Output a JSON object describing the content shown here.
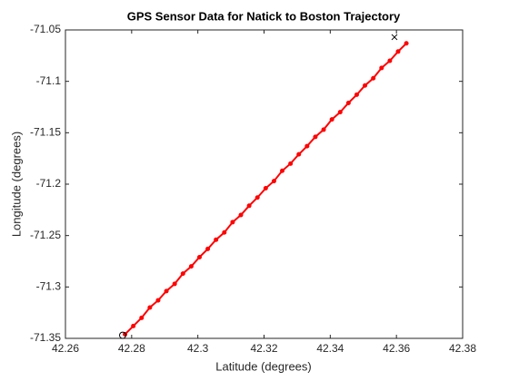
{
  "chart_data": {
    "type": "line",
    "title": "GPS Sensor Data for Natick to Boston Trajectory",
    "x_label": "Latitude (degrees)",
    "y_label": "Longitude (degrees)",
    "xlim": [
      42.26,
      42.38
    ],
    "xticks": [
      42.26,
      42.28,
      42.3,
      42.32,
      42.34,
      42.36,
      42.38
    ],
    "ylim": [
      -71.35,
      -71.05
    ],
    "yticks": [
      -71.35,
      -71.3,
      -71.25,
      -71.2,
      -71.15,
      -71.1,
      -71.05
    ],
    "grid": false,
    "series": [
      {
        "color": "#ff0000",
        "x": [
          42.278,
          42.2805,
          42.283,
          42.2855,
          42.288,
          42.2905,
          42.293,
          42.2955,
          42.298,
          42.3005,
          42.303,
          42.3055,
          42.308,
          42.3105,
          42.313,
          42.3155,
          42.318,
          42.3205,
          42.323,
          42.3255,
          42.328,
          42.3305,
          42.333,
          42.3355,
          42.338,
          42.3405,
          42.343,
          42.3455,
          42.348,
          42.3505,
          42.353,
          42.3555,
          42.358,
          42.3605,
          42.363
        ],
        "values": [
          -71.346,
          -71.338,
          -71.33,
          -71.32,
          -71.313,
          -71.304,
          -71.297,
          -71.287,
          -71.28,
          -71.271,
          -71.263,
          -71.254,
          -71.247,
          -71.237,
          -71.23,
          -71.221,
          -71.213,
          -71.204,
          -71.197,
          -71.187,
          -71.18,
          -71.171,
          -71.163,
          -71.154,
          -71.147,
          -71.137,
          -71.13,
          -71.121,
          -71.113,
          -71.104,
          -71.097,
          -71.087,
          -71.08,
          -71.071,
          -71.063
        ]
      }
    ],
    "markers": [
      {
        "symbol": "o",
        "x": 42.2773,
        "y": -71.347,
        "color": "#000000"
      },
      {
        "symbol": "x",
        "x": 42.3594,
        "y": -71.057,
        "color": "#000000"
      }
    ]
  }
}
